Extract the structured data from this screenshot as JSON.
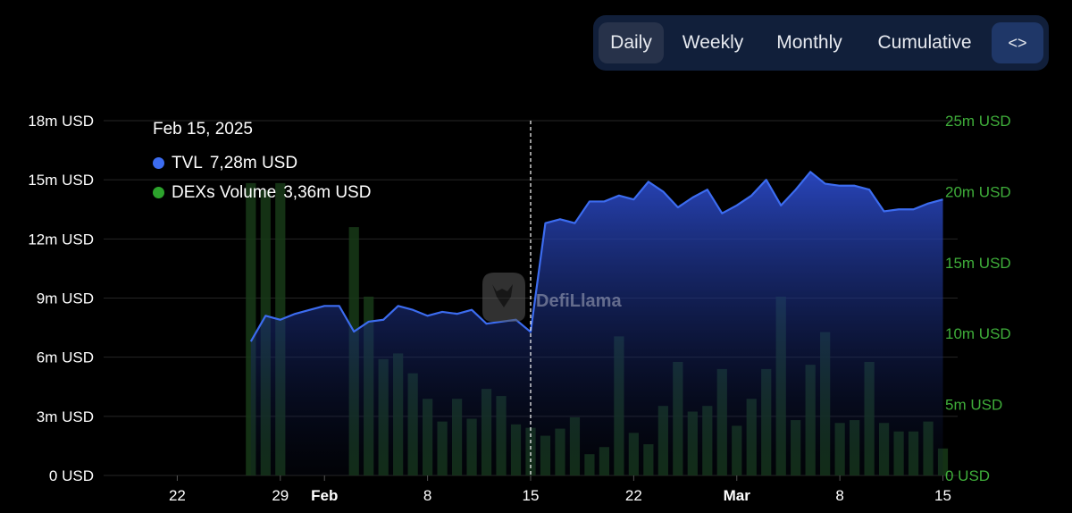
{
  "toolbar": {
    "daily_label": "Daily",
    "weekly_label": "Weekly",
    "monthly_label": "Monthly",
    "cumulative_label": "Cumulative",
    "embed_label": "<>",
    "embed_icon": "code-brackets-icon",
    "active": "Daily"
  },
  "tooltip": {
    "date": "Feb 15, 2025",
    "tvl_label": "TVL",
    "tvl_value": "7,28m USD",
    "dex_label": "DEXs Volume",
    "dex_value": "3,36m USD"
  },
  "watermark": {
    "text": "DefiLlama",
    "icon": "llama-logo-icon"
  },
  "chart_data": {
    "type": "bar+area",
    "title": "",
    "legend": "tooltip-top-left",
    "grid": true,
    "colors": {
      "tvl_line": "#3c6cf0",
      "tvl_fill_top": "#2a48c4",
      "volume_bar": "#173a17",
      "right_axis_text": "#3fae3a",
      "left_axis_text": "#ffffff"
    },
    "x_ticks": [
      {
        "label": "22",
        "date": "2025-01-22",
        "bold": false
      },
      {
        "label": "29",
        "date": "2025-01-29",
        "bold": false
      },
      {
        "label": "Feb",
        "date": "2025-02-01",
        "bold": true
      },
      {
        "label": "8",
        "date": "2025-02-08",
        "bold": false
      },
      {
        "label": "15",
        "date": "2025-02-15",
        "bold": false
      },
      {
        "label": "22",
        "date": "2025-02-22",
        "bold": false
      },
      {
        "label": "Mar",
        "date": "2025-03-01",
        "bold": true
      },
      {
        "label": "8",
        "date": "2025-03-08",
        "bold": false
      },
      {
        "label": "15",
        "date": "2025-03-15",
        "bold": false
      }
    ],
    "x_range": [
      "2025-01-17",
      "2025-03-16"
    ],
    "left_axis": {
      "ticks": [
        "0 USD",
        "3m USD",
        "6m USD",
        "9m USD",
        "12m USD",
        "15m USD",
        "18m USD"
      ],
      "ylim": [
        0,
        18
      ]
    },
    "right_axis": {
      "ticks": [
        "0 USD",
        "5m USD",
        "10m USD",
        "15m USD",
        "20m USD",
        "25m USD"
      ],
      "ylim": [
        0,
        25
      ]
    },
    "crosshair_date": "2025-02-15",
    "series": [
      {
        "name": "TVL",
        "unit": "m USD",
        "axis": "left",
        "dates": [
          "2025-01-27",
          "2025-01-28",
          "2025-01-29",
          "2025-01-30",
          "2025-01-31",
          "2025-02-01",
          "2025-02-02",
          "2025-02-03",
          "2025-02-04",
          "2025-02-05",
          "2025-02-06",
          "2025-02-07",
          "2025-02-08",
          "2025-02-09",
          "2025-02-10",
          "2025-02-11",
          "2025-02-12",
          "2025-02-13",
          "2025-02-14",
          "2025-02-15",
          "2025-02-16",
          "2025-02-17",
          "2025-02-18",
          "2025-02-19",
          "2025-02-20",
          "2025-02-21",
          "2025-02-22",
          "2025-02-23",
          "2025-02-24",
          "2025-02-25",
          "2025-02-26",
          "2025-02-27",
          "2025-02-28",
          "2025-03-01",
          "2025-03-02",
          "2025-03-03",
          "2025-03-04",
          "2025-03-05",
          "2025-03-06",
          "2025-03-07",
          "2025-03-08",
          "2025-03-09",
          "2025-03-10",
          "2025-03-11",
          "2025-03-12",
          "2025-03-13",
          "2025-03-14",
          "2025-03-15"
        ],
        "values": [
          6.8,
          8.1,
          7.9,
          8.2,
          8.4,
          8.6,
          8.6,
          7.3,
          7.8,
          7.9,
          8.6,
          8.4,
          8.1,
          8.3,
          8.2,
          8.4,
          7.7,
          7.8,
          7.9,
          7.28,
          12.8,
          13.0,
          12.8,
          13.9,
          13.9,
          14.2,
          14.0,
          14.9,
          14.4,
          13.6,
          14.1,
          14.5,
          13.3,
          13.7,
          14.2,
          15.0,
          13.7,
          14.5,
          15.4,
          14.8,
          14.7,
          14.7,
          14.5,
          13.4,
          13.5,
          13.5,
          13.8,
          14.0
        ]
      },
      {
        "name": "DEXs Volume",
        "unit": "m USD",
        "axis": "right",
        "dates": [
          "2025-01-27",
          "2025-01-28",
          "2025-01-29",
          "2025-02-03",
          "2025-02-04",
          "2025-02-05",
          "2025-02-06",
          "2025-02-07",
          "2025-02-08",
          "2025-02-09",
          "2025-02-10",
          "2025-02-11",
          "2025-02-12",
          "2025-02-13",
          "2025-02-14",
          "2025-02-15",
          "2025-02-16",
          "2025-02-17",
          "2025-02-18",
          "2025-02-19",
          "2025-02-20",
          "2025-02-21",
          "2025-02-22",
          "2025-02-23",
          "2025-02-24",
          "2025-02-25",
          "2025-02-26",
          "2025-02-27",
          "2025-02-28",
          "2025-03-01",
          "2025-03-02",
          "2025-03-03",
          "2025-03-04",
          "2025-03-05",
          "2025-03-06",
          "2025-03-07",
          "2025-03-08",
          "2025-03-09",
          "2025-03-10",
          "2025-03-11",
          "2025-03-12",
          "2025-03-13",
          "2025-03-14",
          "2025-03-15"
        ],
        "values": [
          20.6,
          20.1,
          20.6,
          17.5,
          12.6,
          8.2,
          8.6,
          7.2,
          5.4,
          3.8,
          5.4,
          4.0,
          6.1,
          5.6,
          3.6,
          3.36,
          2.8,
          3.3,
          4.1,
          1.5,
          2.0,
          9.8,
          3.0,
          2.2,
          4.9,
          8.0,
          4.5,
          4.9,
          7.5,
          3.5,
          5.4,
          7.5,
          12.6,
          3.9,
          7.8,
          10.1,
          3.7,
          3.9,
          8.0,
          3.7,
          3.1,
          3.1,
          3.8,
          1.9
        ]
      }
    ]
  }
}
